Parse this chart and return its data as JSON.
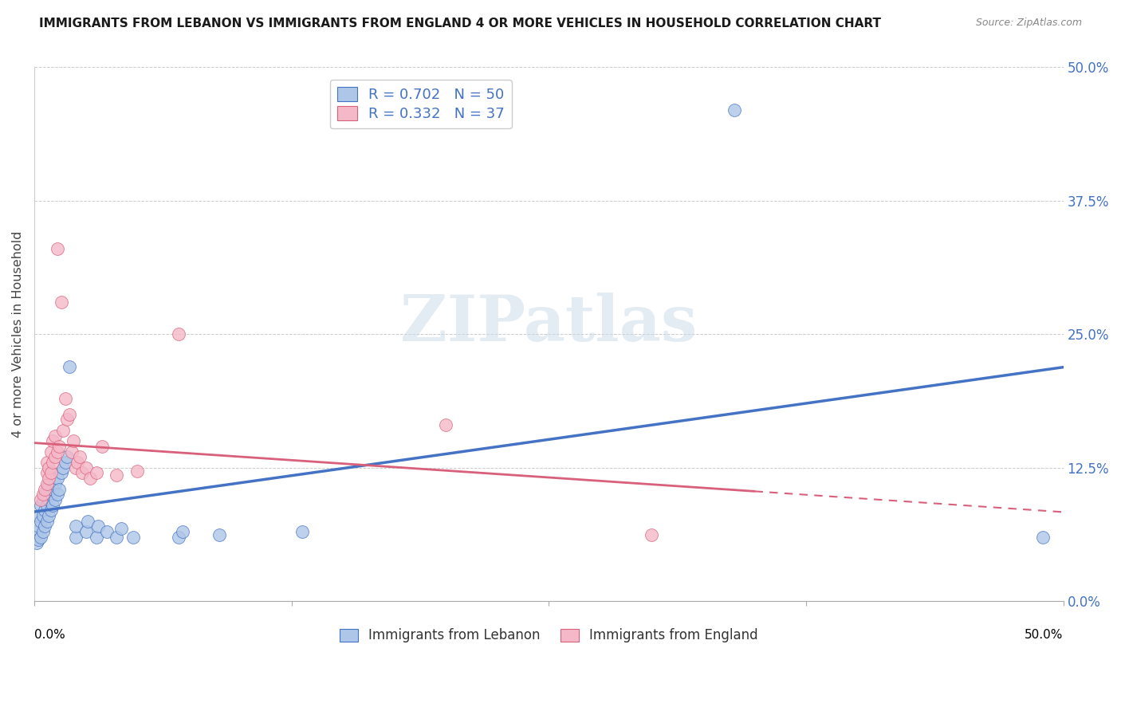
{
  "title": "IMMIGRANTS FROM LEBANON VS IMMIGRANTS FROM ENGLAND 4 OR MORE VEHICLES IN HOUSEHOLD CORRELATION CHART",
  "source": "Source: ZipAtlas.com",
  "ylabel": "4 or more Vehicles in Household",
  "xlim": [
    0.0,
    0.5
  ],
  "ylim": [
    0.0,
    0.5
  ],
  "ytick_values": [
    0.0,
    0.125,
    0.25,
    0.375,
    0.5
  ],
  "ytick_labels": [
    "0.0%",
    "12.5%",
    "25.0%",
    "37.5%",
    "50.0%"
  ],
  "R_lebanon": 0.702,
  "N_lebanon": 50,
  "R_england": 0.332,
  "N_england": 37,
  "watermark": "ZIPatlas",
  "lebanon_color": "#aec6e8",
  "england_color": "#f5b8c8",
  "line_lebanon_color": "#4472c4",
  "line_england_color": "#d9607a",
  "lebanon_scatter": [
    [
      0.001,
      0.055
    ],
    [
      0.001,
      0.065
    ],
    [
      0.002,
      0.058
    ],
    [
      0.002,
      0.07
    ],
    [
      0.002,
      0.08
    ],
    [
      0.003,
      0.06
    ],
    [
      0.003,
      0.075
    ],
    [
      0.003,
      0.09
    ],
    [
      0.004,
      0.065
    ],
    [
      0.004,
      0.08
    ],
    [
      0.004,
      0.095
    ],
    [
      0.005,
      0.07
    ],
    [
      0.005,
      0.085
    ],
    [
      0.005,
      0.1
    ],
    [
      0.006,
      0.075
    ],
    [
      0.006,
      0.09
    ],
    [
      0.006,
      0.105
    ],
    [
      0.007,
      0.08
    ],
    [
      0.007,
      0.095
    ],
    [
      0.007,
      0.11
    ],
    [
      0.008,
      0.085
    ],
    [
      0.008,
      0.1
    ],
    [
      0.009,
      0.09
    ],
    [
      0.009,
      0.105
    ],
    [
      0.01,
      0.095
    ],
    [
      0.01,
      0.11
    ],
    [
      0.011,
      0.1
    ],
    [
      0.011,
      0.115
    ],
    [
      0.012,
      0.105
    ],
    [
      0.013,
      0.12
    ],
    [
      0.014,
      0.125
    ],
    [
      0.015,
      0.13
    ],
    [
      0.016,
      0.135
    ],
    [
      0.017,
      0.22
    ],
    [
      0.02,
      0.06
    ],
    [
      0.02,
      0.07
    ],
    [
      0.025,
      0.065
    ],
    [
      0.026,
      0.075
    ],
    [
      0.03,
      0.06
    ],
    [
      0.031,
      0.07
    ],
    [
      0.035,
      0.065
    ],
    [
      0.04,
      0.06
    ],
    [
      0.042,
      0.068
    ],
    [
      0.048,
      0.06
    ],
    [
      0.07,
      0.06
    ],
    [
      0.072,
      0.065
    ],
    [
      0.09,
      0.062
    ],
    [
      0.13,
      0.065
    ],
    [
      0.34,
      0.46
    ],
    [
      0.49,
      0.06
    ]
  ],
  "england_scatter": [
    [
      0.003,
      0.095
    ],
    [
      0.004,
      0.1
    ],
    [
      0.005,
      0.105
    ],
    [
      0.006,
      0.11
    ],
    [
      0.006,
      0.12
    ],
    [
      0.006,
      0.13
    ],
    [
      0.007,
      0.115
    ],
    [
      0.007,
      0.125
    ],
    [
      0.008,
      0.12
    ],
    [
      0.008,
      0.14
    ],
    [
      0.009,
      0.13
    ],
    [
      0.009,
      0.15
    ],
    [
      0.01,
      0.135
    ],
    [
      0.01,
      0.155
    ],
    [
      0.011,
      0.14
    ],
    [
      0.011,
      0.33
    ],
    [
      0.012,
      0.145
    ],
    [
      0.013,
      0.28
    ],
    [
      0.014,
      0.16
    ],
    [
      0.015,
      0.19
    ],
    [
      0.016,
      0.17
    ],
    [
      0.017,
      0.175
    ],
    [
      0.018,
      0.14
    ],
    [
      0.019,
      0.15
    ],
    [
      0.02,
      0.125
    ],
    [
      0.021,
      0.13
    ],
    [
      0.022,
      0.135
    ],
    [
      0.023,
      0.12
    ],
    [
      0.025,
      0.125
    ],
    [
      0.027,
      0.115
    ],
    [
      0.03,
      0.12
    ],
    [
      0.033,
      0.145
    ],
    [
      0.04,
      0.118
    ],
    [
      0.05,
      0.122
    ],
    [
      0.07,
      0.25
    ],
    [
      0.2,
      0.165
    ],
    [
      0.3,
      0.062
    ]
  ],
  "legend_text_color": "#4472c4"
}
